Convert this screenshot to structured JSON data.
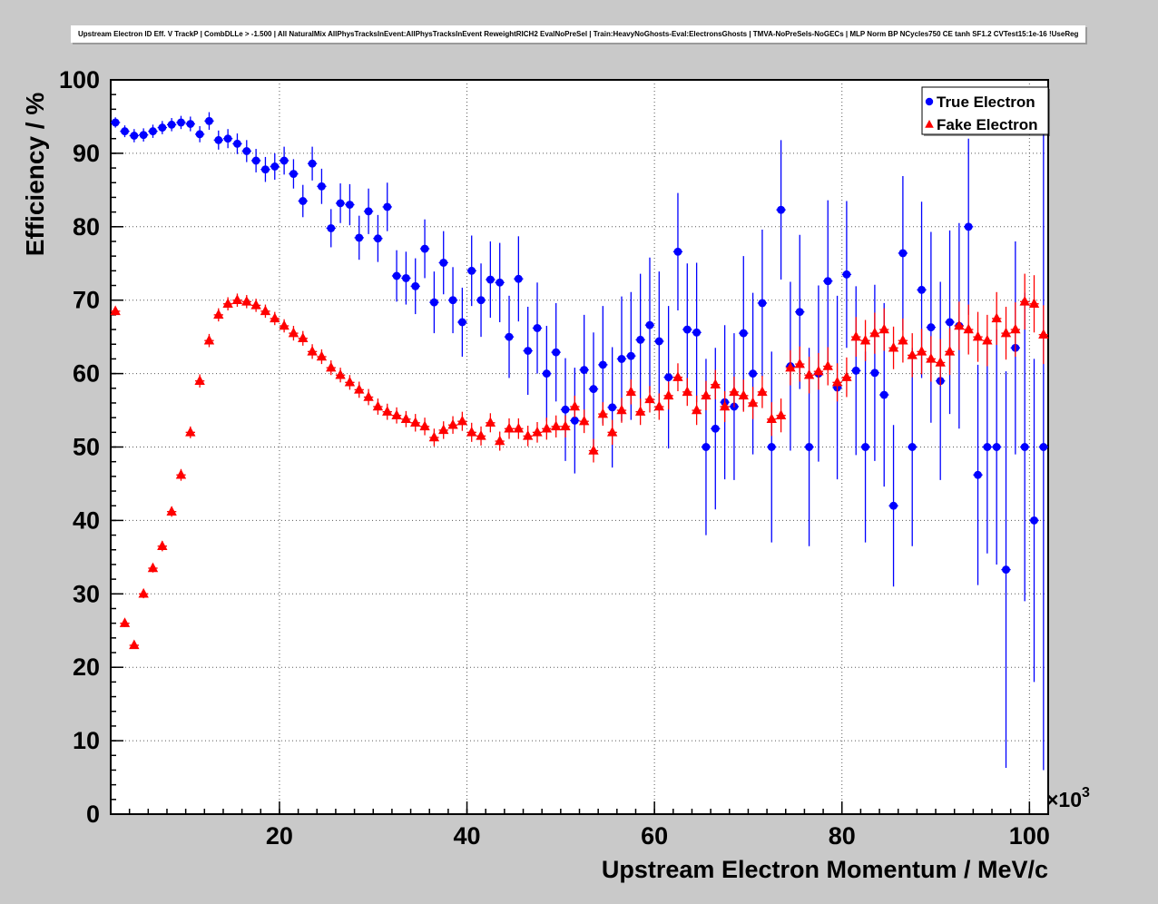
{
  "colors": {
    "background": "#c9c9c9",
    "frame": "#ffffff",
    "axis": "#000000",
    "grid": "#000000",
    "legend_bg": "#ffffff",
    "true_electron": "#0000ff",
    "fake_electron": "#ff0000"
  },
  "chart_data": {
    "type": "scatter",
    "title": "Upstream Electron ID Eff. V TrackP | CombDLLe > -1.500 | All NaturalMix AllPhysTracksInEvent:AllPhysTracksInEvent ReweightRICH2 EvalNoPreSel | Train:HeavyNoGhosts-Eval:ElectronsGhosts | TMVA-NoPreSels-NoGECs | MLP Norm BP NCycles750 CE tanh SF1.2 CVTest15:1e-16 !UseReg",
    "xlabel": "Upstream Electron Momentum / MeV/c",
    "ylabel": "Efficiency / %",
    "x_exponent_base": "×10",
    "x_exponent_power": "3",
    "xlim": [
      2,
      102
    ],
    "ylim": [
      0,
      100
    ],
    "x_ticks": [
      20,
      40,
      60,
      80,
      100
    ],
    "y_ticks": [
      0,
      10,
      20,
      30,
      40,
      50,
      60,
      70,
      80,
      90,
      100
    ],
    "x_minor_step": 2,
    "y_minor_step": 2,
    "grid": true,
    "x_bin_half_width": 0.5,
    "legend": {
      "position": "top-right",
      "entries": [
        {
          "label": "True Electron",
          "marker": "circle",
          "color": "#0000ff"
        },
        {
          "label": "Fake Electron",
          "marker": "triangle",
          "color": "#ff0000"
        }
      ]
    },
    "x": [
      2.5,
      3.5,
      4.5,
      5.5,
      6.5,
      7.5,
      8.5,
      9.5,
      10.5,
      11.5,
      12.5,
      13.5,
      14.5,
      15.5,
      16.5,
      17.5,
      18.5,
      19.5,
      20.5,
      21.5,
      22.5,
      23.5,
      24.5,
      25.5,
      26.5,
      27.5,
      28.5,
      29.5,
      30.5,
      31.5,
      32.5,
      33.5,
      34.5,
      35.5,
      36.5,
      37.5,
      38.5,
      39.5,
      40.5,
      41.5,
      42.5,
      43.5,
      44.5,
      45.5,
      46.5,
      47.5,
      48.5,
      49.5,
      50.5,
      51.5,
      52.5,
      53.5,
      54.5,
      55.5,
      56.5,
      57.5,
      58.5,
      59.5,
      60.5,
      61.5,
      62.5,
      63.5,
      64.5,
      65.5,
      66.5,
      67.5,
      68.5,
      69.5,
      70.5,
      71.5,
      72.5,
      73.5,
      74.5,
      75.5,
      76.5,
      77.5,
      78.5,
      79.5,
      80.5,
      81.5,
      82.5,
      83.5,
      84.5,
      85.5,
      86.5,
      87.5,
      88.5,
      89.5,
      90.5,
      91.5,
      92.5,
      93.5,
      94.5,
      95.5,
      96.5,
      97.5,
      98.5,
      99.5,
      100.5,
      101.5
    ],
    "series": [
      {
        "name": "True Electron",
        "marker": "circle",
        "color": "#0000ff",
        "y": [
          94.2,
          93.0,
          92.4,
          92.5,
          93.0,
          93.5,
          93.9,
          94.2,
          94.0,
          92.6,
          94.4,
          91.8,
          92.0,
          91.3,
          90.3,
          89.0,
          87.8,
          88.2,
          89.0,
          87.2,
          83.5,
          88.6,
          85.5,
          79.8,
          83.2,
          83.0,
          78.5,
          82.1,
          78.4,
          82.7,
          73.3,
          73.0,
          71.9,
          77.0,
          69.7,
          75.1,
          70.0,
          67.0,
          74.0,
          70.0,
          72.8,
          72.4,
          65.0,
          72.9,
          63.1,
          66.2,
          60.0,
          62.9,
          55.1,
          53.6,
          60.5,
          57.9,
          61.2,
          55.4,
          62.0,
          62.4,
          64.6,
          66.6,
          64.4,
          59.5,
          76.6,
          66.0,
          65.6,
          50.0,
          52.5,
          56.1,
          55.5,
          65.5,
          60.0,
          69.6,
          50.0,
          82.3,
          61.0,
          68.4,
          50.0,
          60.0,
          72.6,
          58.1,
          73.5,
          60.4,
          50.0,
          60.1,
          57.1,
          42.0,
          76.4,
          50.0,
          71.4,
          66.3,
          59.0,
          67.0,
          66.5,
          80.0,
          46.2,
          50.0,
          50.0,
          33.3,
          63.5,
          50.0,
          40.0,
          50.0
        ],
        "ey": [
          0.7,
          0.8,
          0.9,
          0.9,
          0.9,
          0.9,
          0.9,
          0.9,
          1.0,
          1.1,
          1.2,
          1.3,
          1.3,
          1.4,
          1.5,
          1.6,
          1.7,
          1.8,
          1.9,
          2.0,
          2.2,
          2.3,
          2.4,
          2.6,
          2.7,
          2.8,
          3.0,
          3.1,
          3.2,
          3.3,
          3.5,
          3.6,
          3.8,
          4.0,
          4.2,
          4.3,
          4.5,
          4.7,
          4.8,
          5.0,
          5.2,
          5.4,
          5.6,
          5.8,
          6.0,
          6.2,
          6.5,
          6.7,
          7.0,
          7.2,
          7.5,
          7.7,
          8.0,
          8.2,
          8.5,
          8.7,
          9.0,
          9.2,
          9.5,
          9.7,
          8.0,
          9.0,
          9.5,
          12.0,
          11.0,
          10.5,
          10.0,
          10.5,
          11.0,
          10.0,
          13.0,
          9.5,
          11.5,
          10.5,
          13.5,
          12.0,
          11.0,
          12.5,
          10.0,
          11.5,
          13.0,
          12.0,
          12.5,
          11.0,
          10.5,
          13.5,
          12.0,
          13.0,
          13.5,
          12.5,
          14.0,
          12.0,
          15.0,
          14.5,
          16.0,
          27.0,
          14.5,
          21.0,
          22.0,
          44.0
        ]
      },
      {
        "name": "Fake Electron",
        "marker": "triangle",
        "color": "#ff0000",
        "y": [
          68.5,
          26.0,
          23.0,
          30.0,
          33.5,
          36.5,
          41.2,
          46.2,
          52.0,
          59.0,
          64.5,
          68.0,
          69.5,
          70.0,
          69.8,
          69.3,
          68.5,
          67.5,
          66.5,
          65.5,
          64.8,
          63.0,
          62.3,
          60.8,
          59.8,
          58.8,
          57.8,
          56.8,
          55.5,
          54.8,
          54.3,
          53.8,
          53.3,
          52.8,
          51.3,
          52.3,
          53.0,
          53.5,
          52.0,
          51.5,
          53.3,
          50.8,
          52.5,
          52.5,
          51.5,
          52.0,
          52.5,
          52.8,
          52.8,
          55.5,
          53.5,
          49.5,
          54.5,
          52.0,
          55.0,
          57.5,
          54.8,
          56.5,
          55.5,
          57.0,
          59.5,
          57.5,
          55.0,
          57.0,
          58.5,
          55.5,
          57.5,
          57.0,
          56.0,
          57.5,
          53.8,
          54.3,
          60.8,
          61.3,
          59.8,
          60.3,
          61.0,
          58.8,
          59.5,
          65.0,
          64.5,
          65.5,
          66.0,
          63.5,
          64.5,
          62.5,
          63.0,
          62.0,
          61.5,
          63.0,
          66.5,
          66.0,
          65.0,
          64.5,
          67.5,
          65.5,
          66.0,
          69.8,
          69.5,
          65.3
        ],
        "ey": [
          0.6,
          0.5,
          0.5,
          0.6,
          0.6,
          0.7,
          0.7,
          0.8,
          0.8,
          0.9,
          0.9,
          0.9,
          0.9,
          0.9,
          0.9,
          0.9,
          0.9,
          0.9,
          0.9,
          1.0,
          1.0,
          1.0,
          1.0,
          1.0,
          1.0,
          1.0,
          1.1,
          1.1,
          1.1,
          1.1,
          1.1,
          1.1,
          1.2,
          1.2,
          1.2,
          1.2,
          1.2,
          1.3,
          1.3,
          1.3,
          1.3,
          1.3,
          1.4,
          1.4,
          1.4,
          1.4,
          1.5,
          1.5,
          1.5,
          1.5,
          1.6,
          1.6,
          1.6,
          1.7,
          1.7,
          1.7,
          1.8,
          1.8,
          1.8,
          1.9,
          1.9,
          1.9,
          2.0,
          2.0,
          2.0,
          2.1,
          2.1,
          2.2,
          2.2,
          2.2,
          2.3,
          2.3,
          2.4,
          2.4,
          2.5,
          2.5,
          2.6,
          2.6,
          2.7,
          2.7,
          2.8,
          2.8,
          2.9,
          2.9,
          3.0,
          3.0,
          3.1,
          3.1,
          3.2,
          3.2,
          3.3,
          3.4,
          3.4,
          3.5,
          3.6,
          3.6,
          3.7,
          3.8,
          3.9,
          4.0
        ]
      }
    ]
  }
}
